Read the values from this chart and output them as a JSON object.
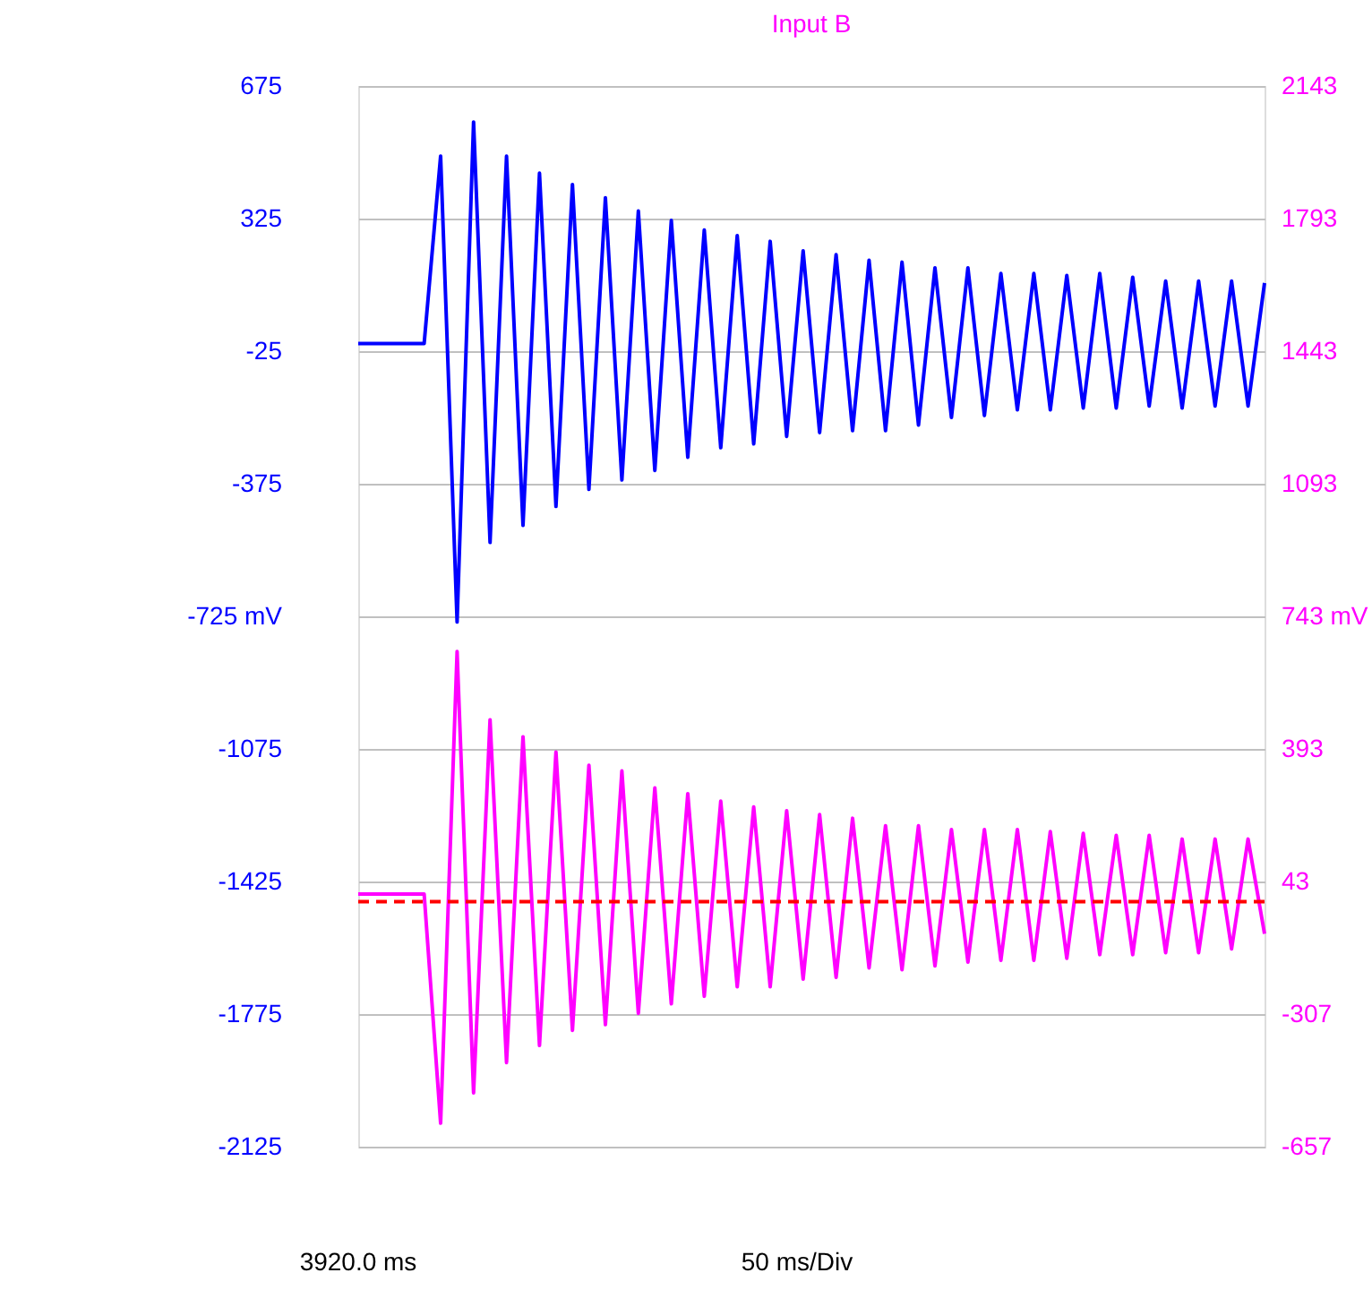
{
  "chart_data": {
    "type": "line",
    "title": "Input B",
    "categories": [
      null,
      null,
      null,
      null,
      null,
      null,
      null,
      null,
      null,
      null,
      null,
      null,
      null,
      null,
      null,
      null,
      null,
      null,
      null,
      null,
      null,
      null,
      null,
      null,
      null,
      null,
      null,
      null,
      null,
      null,
      null,
      null,
      null,
      null,
      null,
      null,
      null,
      null,
      null,
      null,
      null,
      null,
      null,
      null,
      null,
      null,
      null,
      null,
      null,
      null,
      null,
      null,
      null,
      null,
      null,
      null
    ],
    "tick_labels": "y",
    "ylim": [
      -2125,
      675
    ],
    "yticks": [
      675,
      325,
      -25,
      -375,
      {
        "value": -725,
        "label": "-725 mV"
      },
      -1075,
      -1425,
      -1775,
      -2125
    ],
    "y2lim": [
      -657,
      2143
    ],
    "y2ticks": [
      2143,
      1793,
      1443,
      1093,
      {
        "value": 743,
        "label": "743 mV"
      },
      393,
      43,
      -307,
      -657
    ],
    "grid": "y",
    "series": [
      {
        "color": "#0000ff",
        "axis": "y",
        "values": [
          -5,
          -5,
          -5,
          -5,
          -5,
          490,
          -740,
          580,
          -530,
          490,
          -485,
          445,
          -435,
          415,
          -390,
          380,
          -365,
          345,
          -340,
          320,
          -305,
          295,
          -280,
          280,
          -270,
          265,
          -250,
          240,
          -240,
          230,
          -235,
          215,
          -235,
          210,
          -220,
          195,
          -200,
          195,
          -195,
          180,
          -180,
          180,
          -180,
          175,
          -175,
          180,
          -175,
          170,
          -170,
          160,
          -175,
          160,
          -170,
          160,
          -170,
          155
        ]
      },
      {
        "color": "#ff00ff",
        "axis": "y2",
        "values": [
          10,
          10,
          10,
          10,
          10,
          -595,
          650,
          -515,
          470,
          -435,
          425,
          -390,
          385,
          -350,
          350,
          -335,
          335,
          -305,
          290,
          -280,
          275,
          -260,
          255,
          -235,
          240,
          -235,
          230,
          -215,
          220,
          -210,
          210,
          -185,
          190,
          -190,
          190,
          -180,
          180,
          -170,
          180,
          -165,
          180,
          -165,
          175,
          -160,
          170,
          -150,
          165,
          -150,
          165,
          -145,
          155,
          -145,
          155,
          -135,
          155,
          -95
        ]
      }
    ],
    "ref_lines": [
      {
        "axis": "y2",
        "value": -10,
        "color": "#ff0000",
        "line_style": "dashed"
      }
    ],
    "annotations": [
      "3920.0 ms",
      "50 ms/Div"
    ]
  }
}
